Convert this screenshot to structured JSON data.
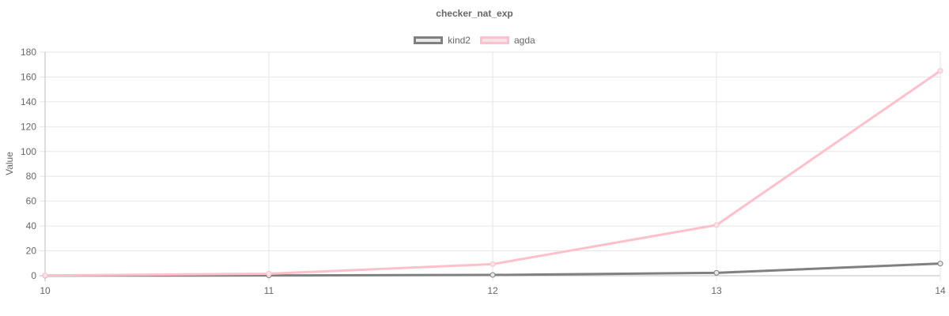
{
  "chart_data": {
    "type": "line",
    "title": "checker_nat_exp",
    "ylabel": "Value",
    "xlabel": "",
    "x": [
      10,
      11,
      12,
      13,
      14
    ],
    "xlim": [
      10,
      14
    ],
    "ylim": [
      0,
      180
    ],
    "y_ticks": [
      0,
      20,
      40,
      60,
      80,
      100,
      120,
      140,
      160,
      180
    ],
    "grid": true,
    "legend_position": "top-center",
    "series": [
      {
        "name": "kind2",
        "values": [
          0.1,
          0.2,
          0.6,
          2.3,
          9.8
        ],
        "color": "#808080",
        "fill": "#e8e8e8"
      },
      {
        "name": "agda",
        "values": [
          0.2,
          1.6,
          9.3,
          40.8,
          165
        ],
        "color": "#ffc0cb",
        "fill": "#f5e4e7"
      }
    ]
  }
}
